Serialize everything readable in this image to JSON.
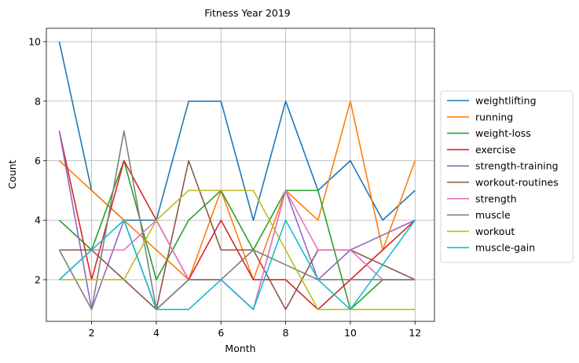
{
  "chart_data": {
    "type": "line",
    "title": "Fitness Year 2019",
    "xlabel": "Month",
    "ylabel": "Count",
    "x": [
      1,
      2,
      3,
      4,
      5,
      6,
      7,
      8,
      9,
      10,
      11,
      12
    ],
    "xlim": [
      0.6,
      12.6
    ],
    "ylim": [
      0.6,
      10.45
    ],
    "xticks": [
      2,
      4,
      6,
      8,
      10,
      12
    ],
    "yticks": [
      2,
      4,
      6,
      8,
      10
    ],
    "grid": true,
    "legend_position": "right",
    "series": [
      {
        "name": "weightlifting",
        "color": "#1f77b4",
        "values": [
          10,
          5,
          4,
          4,
          8,
          8,
          4,
          8,
          5,
          6,
          4,
          5
        ]
      },
      {
        "name": "running",
        "color": "#ff7f0e",
        "values": [
          6,
          5,
          4,
          3,
          2,
          5,
          2,
          5,
          4,
          8,
          3,
          6
        ]
      },
      {
        "name": "weight-loss",
        "color": "#2ca02c",
        "values": [
          4,
          3,
          6,
          2,
          4,
          5,
          3,
          5,
          5,
          1,
          2,
          2
        ]
      },
      {
        "name": "exercise",
        "color": "#d62728",
        "values": [
          7,
          2,
          6,
          4,
          2,
          4,
          2,
          2,
          1,
          2,
          3,
          4
        ]
      },
      {
        "name": "strength-training",
        "color": "#9467bd",
        "values": [
          7,
          1,
          4,
          1,
          2,
          2,
          1,
          5,
          2,
          3,
          3.5,
          4
        ]
      },
      {
        "name": "workout-routines",
        "color": "#8c564b",
        "values": [
          3,
          3,
          2,
          1,
          6,
          3,
          3,
          1,
          3,
          3,
          2.5,
          2
        ]
      },
      {
        "name": "strength",
        "color": "#e377c2",
        "values": [
          2,
          3,
          3,
          4,
          2,
          2,
          1,
          5,
          3,
          3,
          2,
          2
        ]
      },
      {
        "name": "muscle",
        "color": "#7f7f7f",
        "values": [
          3,
          1,
          7,
          1,
          2,
          2,
          3,
          2.5,
          2,
          2,
          2,
          2
        ]
      },
      {
        "name": "workout",
        "color": "#bcbd22",
        "values": [
          2,
          2,
          2,
          4,
          5,
          5,
          5,
          3,
          1,
          1,
          1,
          1
        ]
      },
      {
        "name": "muscle-gain",
        "color": "#17becf",
        "values": [
          2,
          3,
          4,
          1,
          1,
          2,
          1,
          4,
          2,
          1,
          2.5,
          4
        ]
      }
    ]
  }
}
